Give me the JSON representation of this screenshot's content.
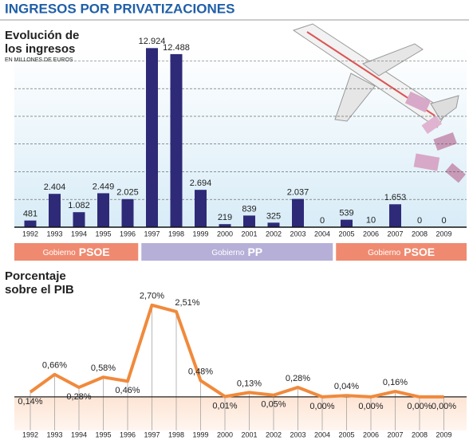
{
  "title": "INGRESOS POR PRIVATIZACIONES",
  "governments": [
    {
      "prefix": "Gobierno",
      "party": "PSOE"
    },
    {
      "prefix": "Gobierno",
      "party": "PP"
    },
    {
      "prefix": "Gobierno",
      "party": "PSOE"
    }
  ],
  "chart_data": [
    {
      "type": "bar",
      "title": "Evolución de los ingresos",
      "subtitle": "EN MILLONES DE EUROS",
      "categories": [
        "1992",
        "1993",
        "1994",
        "1995",
        "1996",
        "1997",
        "1998",
        "1999",
        "2000",
        "2001",
        "2002",
        "2003",
        "2004",
        "2005",
        "2006",
        "2007",
        "2008",
        "2009"
      ],
      "values": [
        481,
        2404,
        1082,
        2449,
        2025,
        12924,
        12488,
        2694,
        219,
        839,
        325,
        2037,
        0,
        539,
        10,
        1653,
        0,
        0
      ],
      "value_labels": [
        "481",
        "2.404",
        "1.082",
        "2.449",
        "2.025",
        "12.924",
        "12.488",
        "2.694",
        "219",
        "839",
        "325",
        "2.037",
        "0",
        "539",
        "10",
        "1.653",
        "0",
        "0"
      ],
      "color": "#2e2a78",
      "ylim": [
        0,
        13000
      ],
      "grid_lines": [
        2000,
        4000,
        6000,
        8000,
        10000,
        12000
      ]
    },
    {
      "type": "line",
      "title": "Porcentaje sobre el PIB",
      "categories": [
        "1992",
        "1993",
        "1994",
        "1995",
        "1996",
        "1997",
        "1998",
        "1999",
        "2000",
        "2001",
        "2002",
        "2003",
        "2004",
        "2005",
        "2006",
        "2007",
        "2008",
        "2009"
      ],
      "values": [
        0.14,
        0.66,
        0.28,
        0.58,
        0.46,
        2.7,
        2.51,
        0.48,
        0.01,
        0.13,
        0.05,
        0.28,
        0.0,
        0.04,
        0.0,
        0.16,
        0.0,
        0.0
      ],
      "value_labels": [
        "0,14%",
        "0,66%",
        "0,28%",
        "0,58%",
        "0,46%",
        "2,70%",
        "2,51%",
        "0,48%",
        "0,01%",
        "0,13%",
        "0,05%",
        "0,28%",
        "0,00%",
        "0,04%",
        "0,00%",
        "0,16%",
        "0,00%",
        "0,00%"
      ],
      "color": "#f08a3c",
      "ylim": [
        -0.8,
        3.0
      ]
    }
  ]
}
